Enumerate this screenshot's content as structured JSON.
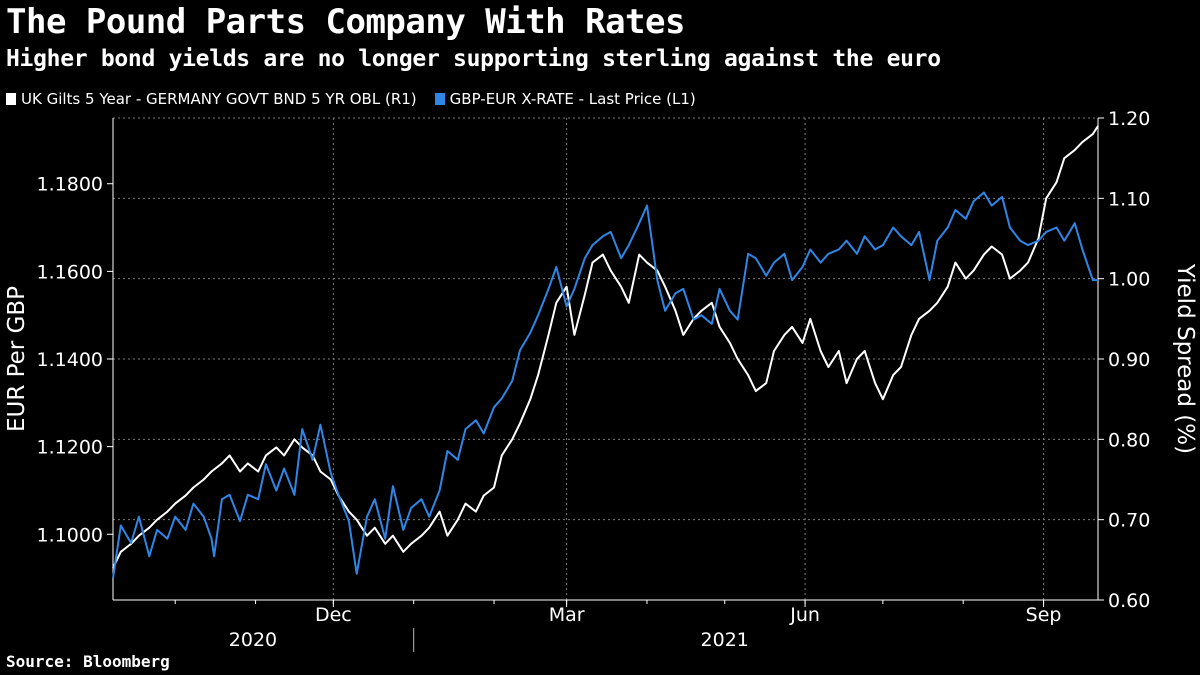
{
  "header": {
    "title": "The Pound Parts Company With Rates",
    "subtitle": "Higher bond yields are no longer supporting sterling against the euro"
  },
  "legend": {
    "right_series_label": "UK Gilts 5 Year - GERMANY GOVT BND 5 YR OBL (R1)",
    "left_series_label": "GBP-EUR X-RATE - Last Price (L1)"
  },
  "footer": {
    "source": "Source: Bloomberg"
  },
  "colors": {
    "background": "#000000",
    "spread": "#ffffff",
    "fx": "#2f86e6",
    "grid": "#7a7a7a"
  },
  "chart_data": {
    "type": "line",
    "ylabel_left": "EUR Per GBP",
    "ylabel_right": "Yield Spread (%)",
    "ylim_left": [
      1.085,
      1.195
    ],
    "ylim_right": [
      0.6,
      1.2
    ],
    "yticks_left": [
      "1.1000",
      "1.1200",
      "1.1400",
      "1.1600",
      "1.1800"
    ],
    "yticks_left_values": [
      1.1,
      1.12,
      1.14,
      1.16,
      1.18
    ],
    "yticks_right": [
      "0.60",
      "0.70",
      "0.80",
      "0.90",
      "1.00",
      "1.10",
      "1.20"
    ],
    "yticks_right_values": [
      0.6,
      0.7,
      0.8,
      0.9,
      1.0,
      1.1,
      1.2
    ],
    "xticks": [
      "Dec",
      "Mar",
      "Jun",
      "Sep"
    ],
    "xticks_dates": [
      "2020-12-01",
      "2021-03-01",
      "2021-06-01",
      "2021-09-01"
    ],
    "year_labels": [
      "2020",
      "2021"
    ],
    "year_label_dates": [
      "2020-10-31",
      "2021-05-01"
    ],
    "year_boundary": "2021-01-01",
    "xlim": [
      "2020-09-07",
      "2021-09-22"
    ],
    "grid": true,
    "series": [
      {
        "name": "GBP-EUR X-RATE - Last Price (L1)",
        "axis": "left",
        "points": [
          [
            "2020-09-07",
            1.09
          ],
          [
            "2020-09-10",
            1.102
          ],
          [
            "2020-09-14",
            1.098
          ],
          [
            "2020-09-17",
            1.104
          ],
          [
            "2020-09-21",
            1.095
          ],
          [
            "2020-09-24",
            1.101
          ],
          [
            "2020-09-28",
            1.099
          ],
          [
            "2020-10-01",
            1.104
          ],
          [
            "2020-10-05",
            1.101
          ],
          [
            "2020-10-08",
            1.107
          ],
          [
            "2020-10-12",
            1.104
          ],
          [
            "2020-10-15",
            1.099
          ],
          [
            "2020-10-16",
            1.095
          ],
          [
            "2020-10-19",
            1.108
          ],
          [
            "2020-10-22",
            1.109
          ],
          [
            "2020-10-26",
            1.103
          ],
          [
            "2020-10-29",
            1.109
          ],
          [
            "2020-11-02",
            1.108
          ],
          [
            "2020-11-05",
            1.116
          ],
          [
            "2020-11-09",
            1.11
          ],
          [
            "2020-11-12",
            1.115
          ],
          [
            "2020-11-16",
            1.109
          ],
          [
            "2020-11-19",
            1.124
          ],
          [
            "2020-11-23",
            1.117
          ],
          [
            "2020-11-26",
            1.125
          ],
          [
            "2020-11-30",
            1.114
          ],
          [
            "2020-12-03",
            1.109
          ],
          [
            "2020-12-07",
            1.103
          ],
          [
            "2020-12-09",
            1.095
          ],
          [
            "2020-12-10",
            1.091
          ],
          [
            "2020-12-14",
            1.104
          ],
          [
            "2020-12-17",
            1.108
          ],
          [
            "2020-12-21",
            1.099
          ],
          [
            "2020-12-24",
            1.111
          ],
          [
            "2020-12-28",
            1.101
          ],
          [
            "2020-12-31",
            1.106
          ],
          [
            "2021-01-04",
            1.108
          ],
          [
            "2021-01-07",
            1.104
          ],
          [
            "2021-01-11",
            1.11
          ],
          [
            "2021-01-14",
            1.119
          ],
          [
            "2021-01-18",
            1.117
          ],
          [
            "2021-01-21",
            1.124
          ],
          [
            "2021-01-25",
            1.126
          ],
          [
            "2021-01-28",
            1.123
          ],
          [
            "2021-02-01",
            1.129
          ],
          [
            "2021-02-04",
            1.131
          ],
          [
            "2021-02-08",
            1.135
          ],
          [
            "2021-02-11",
            1.142
          ],
          [
            "2021-02-15",
            1.146
          ],
          [
            "2021-02-18",
            1.15
          ],
          [
            "2021-02-22",
            1.156
          ],
          [
            "2021-02-25",
            1.161
          ],
          [
            "2021-03-01",
            1.152
          ],
          [
            "2021-03-04",
            1.156
          ],
          [
            "2021-03-08",
            1.163
          ],
          [
            "2021-03-11",
            1.166
          ],
          [
            "2021-03-15",
            1.168
          ],
          [
            "2021-03-18",
            1.169
          ],
          [
            "2021-03-22",
            1.163
          ],
          [
            "2021-03-25",
            1.166
          ],
          [
            "2021-03-29",
            1.171
          ],
          [
            "2021-04-01",
            1.175
          ],
          [
            "2021-04-05",
            1.158
          ],
          [
            "2021-04-08",
            1.151
          ],
          [
            "2021-04-12",
            1.155
          ],
          [
            "2021-04-15",
            1.156
          ],
          [
            "2021-04-19",
            1.149
          ],
          [
            "2021-04-22",
            1.15
          ],
          [
            "2021-04-26",
            1.148
          ],
          [
            "2021-04-29",
            1.156
          ],
          [
            "2021-05-03",
            1.151
          ],
          [
            "2021-05-06",
            1.149
          ],
          [
            "2021-05-10",
            1.164
          ],
          [
            "2021-05-13",
            1.163
          ],
          [
            "2021-05-17",
            1.159
          ],
          [
            "2021-05-20",
            1.162
          ],
          [
            "2021-05-24",
            1.164
          ],
          [
            "2021-05-27",
            1.158
          ],
          [
            "2021-05-31",
            1.161
          ],
          [
            "2021-06-03",
            1.165
          ],
          [
            "2021-06-07",
            1.162
          ],
          [
            "2021-06-10",
            1.164
          ],
          [
            "2021-06-14",
            1.165
          ],
          [
            "2021-06-17",
            1.167
          ],
          [
            "2021-06-21",
            1.164
          ],
          [
            "2021-06-24",
            1.168
          ],
          [
            "2021-06-28",
            1.165
          ],
          [
            "2021-07-01",
            1.166
          ],
          [
            "2021-07-05",
            1.17
          ],
          [
            "2021-07-08",
            1.168
          ],
          [
            "2021-07-12",
            1.166
          ],
          [
            "2021-07-15",
            1.169
          ],
          [
            "2021-07-19",
            1.158
          ],
          [
            "2021-07-22",
            1.167
          ],
          [
            "2021-07-26",
            1.17
          ],
          [
            "2021-07-29",
            1.174
          ],
          [
            "2021-08-02",
            1.172
          ],
          [
            "2021-08-05",
            1.176
          ],
          [
            "2021-08-09",
            1.178
          ],
          [
            "2021-08-12",
            1.175
          ],
          [
            "2021-08-16",
            1.177
          ],
          [
            "2021-08-19",
            1.17
          ],
          [
            "2021-08-23",
            1.167
          ],
          [
            "2021-08-26",
            1.166
          ],
          [
            "2021-08-30",
            1.167
          ],
          [
            "2021-09-02",
            1.169
          ],
          [
            "2021-09-06",
            1.17
          ],
          [
            "2021-09-09",
            1.167
          ],
          [
            "2021-09-13",
            1.171
          ],
          [
            "2021-09-16",
            1.165
          ],
          [
            "2021-09-20",
            1.158
          ],
          [
            "2021-09-22",
            1.158
          ]
        ]
      },
      {
        "name": "UK Gilts 5 Year - GERMANY GOVT BND 5 YR OBL (R1)",
        "axis": "right",
        "points": [
          [
            "2020-09-07",
            0.64
          ],
          [
            "2020-09-10",
            0.66
          ],
          [
            "2020-09-14",
            0.67
          ],
          [
            "2020-09-17",
            0.68
          ],
          [
            "2020-09-21",
            0.69
          ],
          [
            "2020-09-24",
            0.7
          ],
          [
            "2020-09-28",
            0.71
          ],
          [
            "2020-10-01",
            0.72
          ],
          [
            "2020-10-05",
            0.73
          ],
          [
            "2020-10-08",
            0.74
          ],
          [
            "2020-10-12",
            0.75
          ],
          [
            "2020-10-15",
            0.76
          ],
          [
            "2020-10-19",
            0.77
          ],
          [
            "2020-10-22",
            0.78
          ],
          [
            "2020-10-26",
            0.76
          ],
          [
            "2020-10-29",
            0.77
          ],
          [
            "2020-11-02",
            0.76
          ],
          [
            "2020-11-05",
            0.78
          ],
          [
            "2020-11-09",
            0.79
          ],
          [
            "2020-11-12",
            0.78
          ],
          [
            "2020-11-16",
            0.8
          ],
          [
            "2020-11-19",
            0.79
          ],
          [
            "2020-11-23",
            0.78
          ],
          [
            "2020-11-26",
            0.76
          ],
          [
            "2020-11-30",
            0.75
          ],
          [
            "2020-12-03",
            0.73
          ],
          [
            "2020-12-07",
            0.71
          ],
          [
            "2020-12-10",
            0.7
          ],
          [
            "2020-12-14",
            0.68
          ],
          [
            "2020-12-17",
            0.69
          ],
          [
            "2020-12-21",
            0.67
          ],
          [
            "2020-12-24",
            0.68
          ],
          [
            "2020-12-28",
            0.66
          ],
          [
            "2020-12-31",
            0.67
          ],
          [
            "2021-01-04",
            0.68
          ],
          [
            "2021-01-07",
            0.69
          ],
          [
            "2021-01-11",
            0.71
          ],
          [
            "2021-01-14",
            0.68
          ],
          [
            "2021-01-18",
            0.7
          ],
          [
            "2021-01-21",
            0.72
          ],
          [
            "2021-01-25",
            0.71
          ],
          [
            "2021-01-28",
            0.73
          ],
          [
            "2021-02-01",
            0.74
          ],
          [
            "2021-02-04",
            0.78
          ],
          [
            "2021-02-08",
            0.8
          ],
          [
            "2021-02-11",
            0.82
          ],
          [
            "2021-02-15",
            0.85
          ],
          [
            "2021-02-18",
            0.88
          ],
          [
            "2021-02-22",
            0.93
          ],
          [
            "2021-02-25",
            0.97
          ],
          [
            "2021-03-01",
            0.99
          ],
          [
            "2021-03-04",
            0.93
          ],
          [
            "2021-03-08",
            0.98
          ],
          [
            "2021-03-11",
            1.02
          ],
          [
            "2021-03-15",
            1.03
          ],
          [
            "2021-03-18",
            1.01
          ],
          [
            "2021-03-22",
            0.99
          ],
          [
            "2021-03-25",
            0.97
          ],
          [
            "2021-03-29",
            1.03
          ],
          [
            "2021-04-01",
            1.02
          ],
          [
            "2021-04-05",
            1.01
          ],
          [
            "2021-04-08",
            0.99
          ],
          [
            "2021-04-12",
            0.96
          ],
          [
            "2021-04-15",
            0.93
          ],
          [
            "2021-04-19",
            0.95
          ],
          [
            "2021-04-22",
            0.96
          ],
          [
            "2021-04-26",
            0.97
          ],
          [
            "2021-04-29",
            0.94
          ],
          [
            "2021-05-03",
            0.92
          ],
          [
            "2021-05-06",
            0.9
          ],
          [
            "2021-05-10",
            0.88
          ],
          [
            "2021-05-13",
            0.86
          ],
          [
            "2021-05-17",
            0.87
          ],
          [
            "2021-05-20",
            0.91
          ],
          [
            "2021-05-24",
            0.93
          ],
          [
            "2021-05-27",
            0.94
          ],
          [
            "2021-05-31",
            0.92
          ],
          [
            "2021-06-03",
            0.95
          ],
          [
            "2021-06-07",
            0.91
          ],
          [
            "2021-06-10",
            0.89
          ],
          [
            "2021-06-14",
            0.91
          ],
          [
            "2021-06-17",
            0.87
          ],
          [
            "2021-06-21",
            0.9
          ],
          [
            "2021-06-24",
            0.91
          ],
          [
            "2021-06-28",
            0.87
          ],
          [
            "2021-07-01",
            0.85
          ],
          [
            "2021-07-05",
            0.88
          ],
          [
            "2021-07-08",
            0.89
          ],
          [
            "2021-07-12",
            0.93
          ],
          [
            "2021-07-15",
            0.95
          ],
          [
            "2021-07-19",
            0.96
          ],
          [
            "2021-07-22",
            0.97
          ],
          [
            "2021-07-26",
            0.99
          ],
          [
            "2021-07-29",
            1.02
          ],
          [
            "2021-08-02",
            1.0
          ],
          [
            "2021-08-05",
            1.01
          ],
          [
            "2021-08-09",
            1.03
          ],
          [
            "2021-08-12",
            1.04
          ],
          [
            "2021-08-16",
            1.03
          ],
          [
            "2021-08-19",
            1.0
          ],
          [
            "2021-08-23",
            1.01
          ],
          [
            "2021-08-26",
            1.02
          ],
          [
            "2021-08-30",
            1.05
          ],
          [
            "2021-09-02",
            1.1
          ],
          [
            "2021-09-06",
            1.12
          ],
          [
            "2021-09-09",
            1.15
          ],
          [
            "2021-09-13",
            1.16
          ],
          [
            "2021-09-16",
            1.17
          ],
          [
            "2021-09-20",
            1.18
          ],
          [
            "2021-09-22",
            1.19
          ]
        ]
      }
    ]
  }
}
